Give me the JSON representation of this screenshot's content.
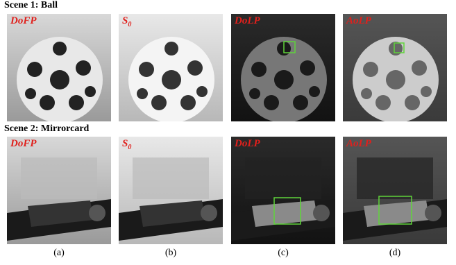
{
  "scenes": [
    {
      "title": "Scene 1: Ball",
      "panels": [
        {
          "label": "DoFP"
        },
        {
          "label": "S",
          "sub": "0"
        },
        {
          "label": "DoLP"
        },
        {
          "label": "AoLP"
        }
      ]
    },
    {
      "title": "Scene 2: Mirrorcard",
      "panels": [
        {
          "label": "DoFP"
        },
        {
          "label": "S",
          "sub": "0"
        },
        {
          "label": "DoLP"
        },
        {
          "label": "AoLP"
        }
      ]
    }
  ],
  "captions": [
    "(a)",
    "(b)",
    "(c)",
    "(d)"
  ]
}
